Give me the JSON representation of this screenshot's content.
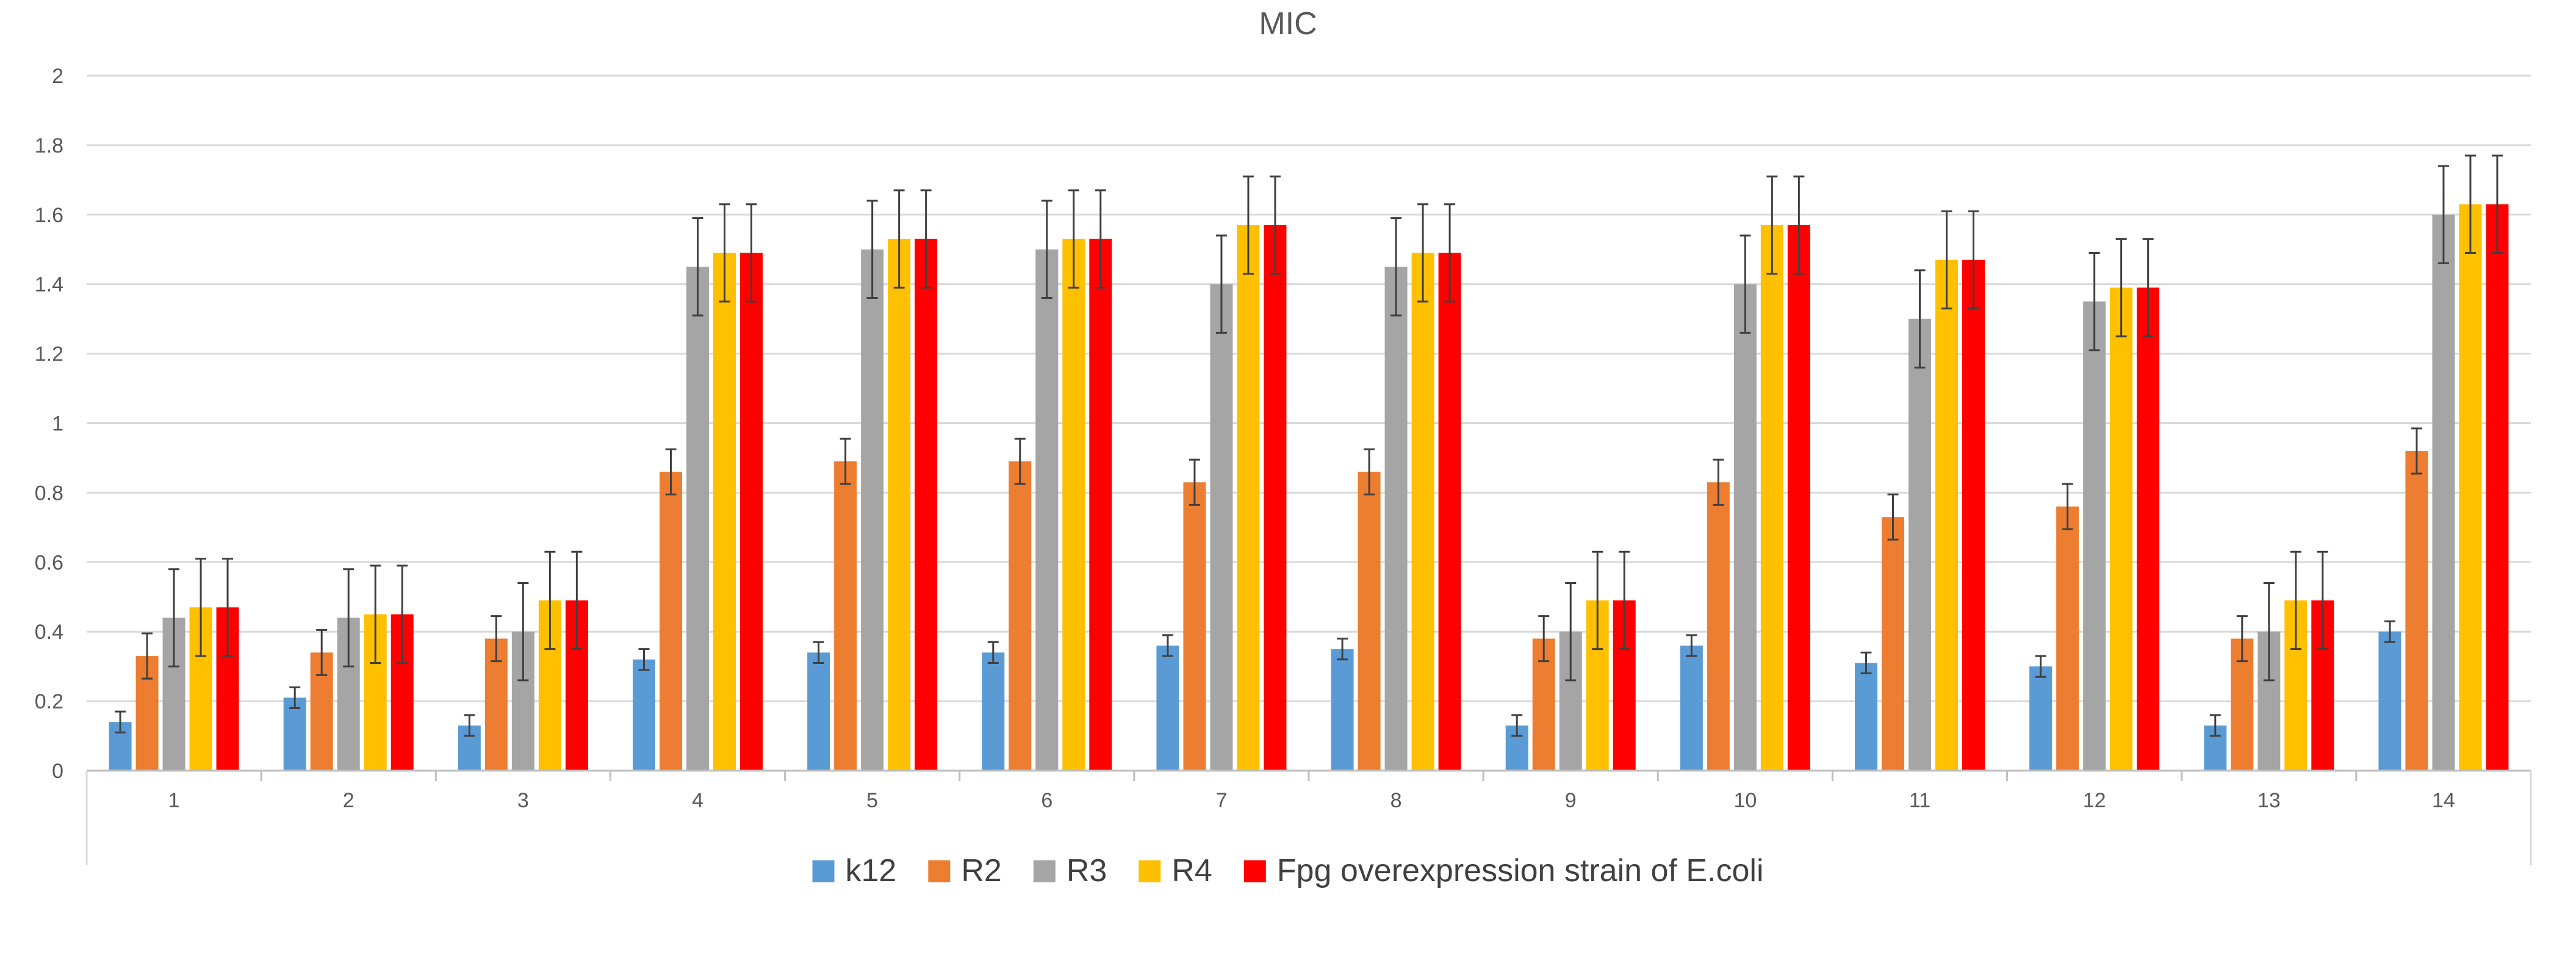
{
  "chart_data": {
    "type": "bar",
    "title": "MIC",
    "xlabel": "",
    "ylabel": "",
    "ylim": [
      0,
      2
    ],
    "ytick_step": 0.2,
    "ytick_labels": [
      "0",
      "0.2",
      "0.4",
      "0.6",
      "0.8",
      "1",
      "1.2",
      "1.4",
      "1.6",
      "1.8",
      "2"
    ],
    "grid": true,
    "legend_position": "bottom",
    "categories": [
      "1",
      "2",
      "3",
      "4",
      "5",
      "6",
      "7",
      "8",
      "9",
      "10",
      "11",
      "12",
      "13",
      "14"
    ],
    "series": [
      {
        "name": "k12",
        "color": "#5B9BD5",
        "values": [
          0.14,
          0.21,
          0.13,
          0.32,
          0.34,
          0.34,
          0.36,
          0.35,
          0.13,
          0.36,
          0.31,
          0.3,
          0.13,
          0.4
        ],
        "errors": [
          0.03,
          0.03,
          0.03,
          0.03,
          0.03,
          0.03,
          0.03,
          0.03,
          0.03,
          0.03,
          0.03,
          0.03,
          0.03,
          0.03
        ]
      },
      {
        "name": "R2",
        "color": "#ED7D31",
        "values": [
          0.33,
          0.34,
          0.38,
          0.86,
          0.89,
          0.89,
          0.83,
          0.86,
          0.38,
          0.83,
          0.73,
          0.76,
          0.38,
          0.92
        ],
        "errors": [
          0.065,
          0.065,
          0.065,
          0.065,
          0.065,
          0.065,
          0.065,
          0.065,
          0.065,
          0.065,
          0.065,
          0.065,
          0.065,
          0.065
        ]
      },
      {
        "name": "R3",
        "color": "#A5A5A5",
        "values": [
          0.44,
          0.44,
          0.4,
          1.45,
          1.5,
          1.5,
          1.4,
          1.45,
          0.4,
          1.4,
          1.3,
          1.35,
          0.4,
          1.6
        ],
        "errors": [
          0.14,
          0.14,
          0.14,
          0.14,
          0.14,
          0.14,
          0.14,
          0.14,
          0.14,
          0.14,
          0.14,
          0.14,
          0.14,
          0.14
        ]
      },
      {
        "name": "R4",
        "color": "#FFC000",
        "values": [
          0.47,
          0.45,
          0.49,
          1.49,
          1.53,
          1.53,
          1.57,
          1.49,
          0.49,
          1.57,
          1.47,
          1.39,
          0.49,
          1.63
        ],
        "errors": [
          0.14,
          0.14,
          0.14,
          0.14,
          0.14,
          0.14,
          0.14,
          0.14,
          0.14,
          0.14,
          0.14,
          0.14,
          0.14,
          0.14
        ]
      },
      {
        "name": "Fpg overexpression strain of E.coli",
        "color": "#FF0000",
        "values": [
          0.47,
          0.45,
          0.49,
          1.49,
          1.53,
          1.53,
          1.57,
          1.49,
          0.49,
          1.57,
          1.47,
          1.39,
          0.49,
          1.63
        ],
        "errors": [
          0.14,
          0.14,
          0.14,
          0.14,
          0.14,
          0.14,
          0.14,
          0.14,
          0.14,
          0.14,
          0.14,
          0.14,
          0.14,
          0.14
        ]
      }
    ]
  }
}
